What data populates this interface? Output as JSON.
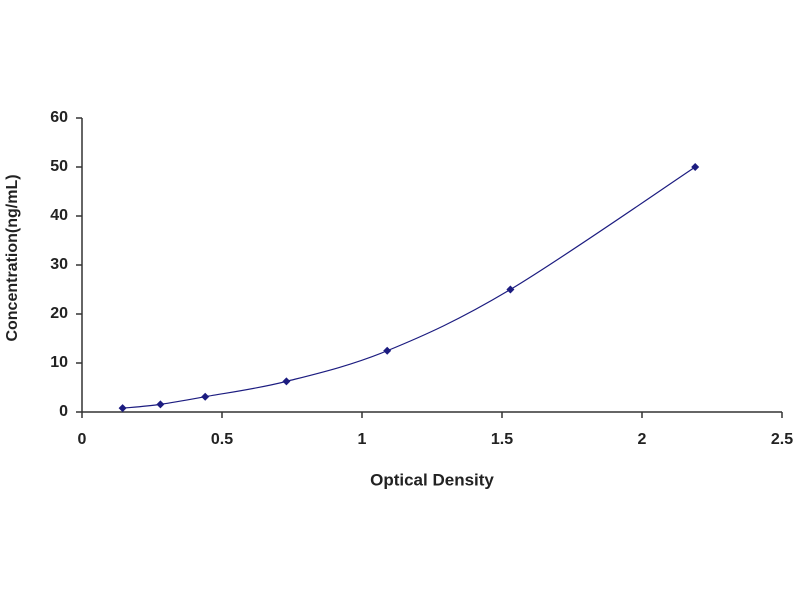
{
  "chart_data": {
    "type": "scatter",
    "x_label": "Optical Density",
    "y_label": "Concentration(ng/mL)",
    "x": [
      0.145,
      0.28,
      0.44,
      0.73,
      1.09,
      1.53,
      2.19
    ],
    "series": [
      {
        "color": "#1c1c80",
        "values": [
          0.78,
          1.56,
          3.12,
          6.25,
          12.5,
          25,
          50
        ]
      }
    ],
    "xlim": [
      0,
      2.5
    ],
    "xticks": [
      0,
      0.5,
      1,
      1.5,
      2,
      2.5
    ],
    "ylim": [
      0,
      60
    ],
    "yticks": [
      0,
      10,
      20,
      30,
      40,
      50,
      60
    ],
    "grid": false,
    "trendline": true
  }
}
